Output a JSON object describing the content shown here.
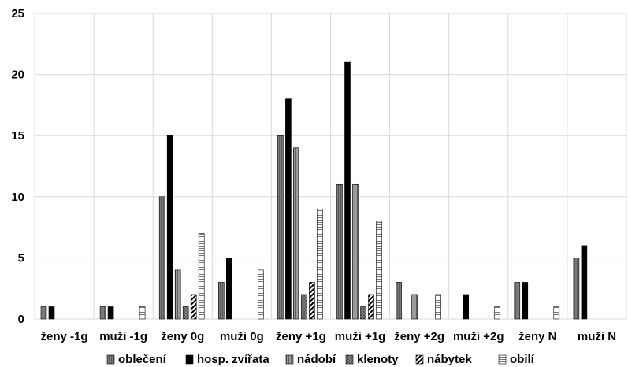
{
  "chart_data": {
    "type": "bar",
    "title": "",
    "xlabel": "",
    "ylabel": "",
    "ylim": [
      0,
      25
    ],
    "yticks": [
      0,
      5,
      10,
      15,
      20,
      25
    ],
    "grid": true,
    "legend_position": "bottom",
    "categories": [
      "ženy -1g",
      "muži -1g",
      "ženy 0g",
      "muži 0g",
      "ženy +1g",
      "muži +1g",
      "ženy +2g",
      "muži +2g",
      "ženy N",
      "muži N"
    ],
    "series": [
      {
        "name": "oblečení",
        "pattern": "dark-gray",
        "values": [
          1,
          1,
          10,
          3,
          15,
          11,
          3,
          0,
          3,
          5
        ]
      },
      {
        "name": "hosp. zvířata",
        "pattern": "black",
        "values": [
          1,
          1,
          15,
          5,
          18,
          21,
          0,
          2,
          3,
          6
        ]
      },
      {
        "name": "nádobí",
        "pattern": "gray-stripes",
        "values": [
          0,
          0,
          4,
          0,
          14,
          11,
          2,
          0,
          0,
          0
        ]
      },
      {
        "name": "klenoty",
        "pattern": "crosshatch",
        "values": [
          0,
          0,
          1,
          0,
          2,
          1,
          0,
          0,
          0,
          0
        ]
      },
      {
        "name": "nábytek",
        "pattern": "diagonal",
        "values": [
          0,
          0,
          2,
          0,
          3,
          2,
          0,
          0,
          0,
          0
        ]
      },
      {
        "name": "obilí",
        "pattern": "horizontal",
        "values": [
          0,
          1,
          7,
          4,
          9,
          8,
          2,
          1,
          1,
          0
        ]
      }
    ]
  }
}
